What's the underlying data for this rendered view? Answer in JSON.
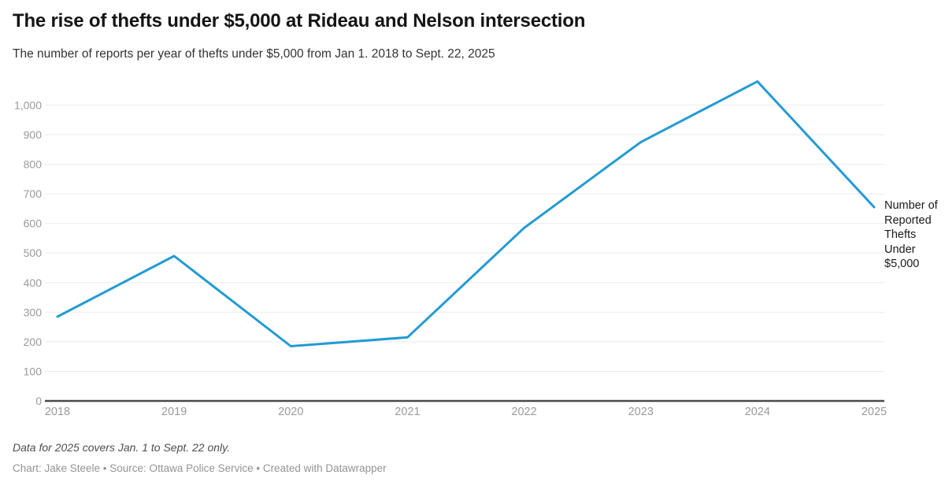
{
  "header": {
    "title": "The rise of thefts under $5,000 at Rideau and Nelson intersection",
    "subtitle": "The number of reports per year of thefts under $5,000 from Jan 1. 2018 to Sept. 22, 2025"
  },
  "chart_data": {
    "type": "line",
    "title": "The rise of thefts under $5,000 at Rideau and Nelson intersection",
    "subtitle": "The number of reports per year of thefts under $5,000 from Jan 1. 2018 to Sept. 22, 2025",
    "x": [
      "2018",
      "2019",
      "2020",
      "2021",
      "2022",
      "2023",
      "2024",
      "2025"
    ],
    "series": [
      {
        "name": "Number of Reported Thefts Under $5,000",
        "values": [
          285,
          490,
          185,
          215,
          585,
          875,
          1080,
          655
        ]
      }
    ],
    "y_axis": {
      "values": [
        0,
        100,
        200,
        300,
        400,
        500,
        600,
        700,
        800,
        900,
        1000
      ],
      "labels": [
        "0",
        "100",
        "200",
        "300",
        "400",
        "500",
        "600",
        "700",
        "800",
        "900",
        "1,000"
      ]
    },
    "ylim": [
      0,
      1120
    ],
    "grid": "horizontal",
    "legend_position": "right-of-line-end-label",
    "line_color": "#239bd2",
    "grid_color": "#ebebeb",
    "baseline_color": "#4a4a4a",
    "tick_label_color": "#9a9a9a"
  },
  "annotation": {
    "label": "Number of Reported Thefts Under $5,000"
  },
  "footer": {
    "note": "Data for 2025 covers Jan. 1 to Sept. 22 only.",
    "credit": "Chart: Jake Steele • Source: Ottawa Police Service • Created with Datawrapper"
  }
}
